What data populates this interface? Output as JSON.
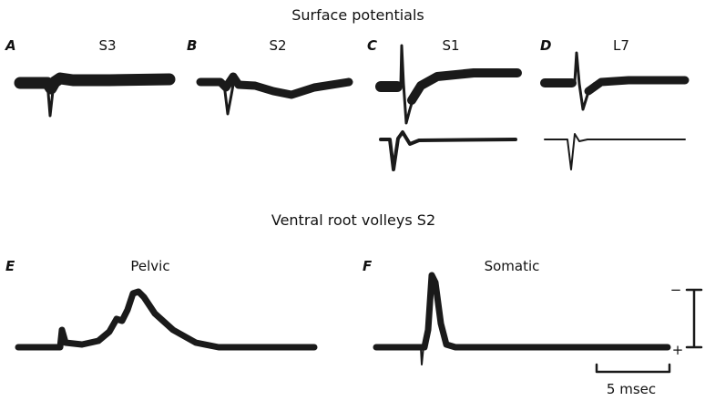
{
  "header": {
    "title": "Surface potentials"
  },
  "panels": [
    {
      "letter": "A",
      "label": "S3"
    },
    {
      "letter": "B",
      "label": "S2"
    },
    {
      "letter": "C",
      "label": "S1"
    },
    {
      "letter": "D",
      "label": "L7"
    }
  ],
  "section": {
    "title": "Ventral root volleys S2"
  },
  "lower_panels": [
    {
      "letter": "E",
      "label": "Pelvic"
    },
    {
      "letter": "F",
      "label": "Somatic"
    }
  ],
  "scale": {
    "time_label": "5 msec",
    "negative": "−",
    "positive": "+"
  }
}
